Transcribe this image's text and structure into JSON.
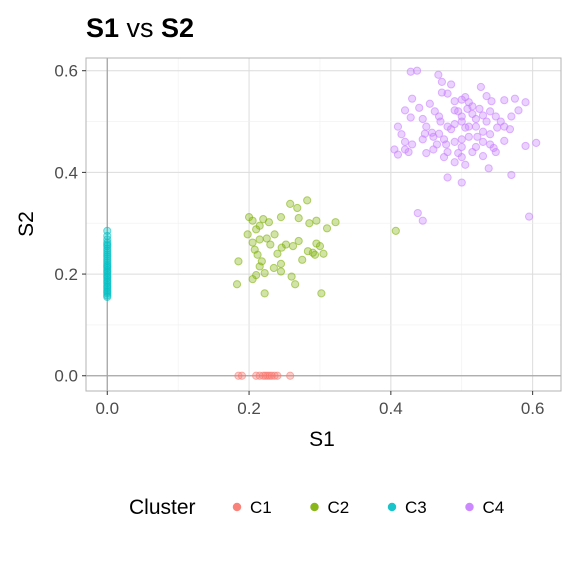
{
  "chart_data": {
    "type": "scatter",
    "title": {
      "bold_1": "S1",
      "middle": " vs ",
      "bold_2": "S2"
    },
    "xlabel": "S1",
    "ylabel": "S2",
    "xlim": [
      -0.03,
      0.64
    ],
    "ylim": [
      -0.03,
      0.625
    ],
    "x_ticks": [
      0.0,
      0.2,
      0.4,
      0.6
    ],
    "y_ticks": [
      0.0,
      0.2,
      0.4,
      0.6
    ],
    "x_tick_labels": [
      "0.0",
      "0.2",
      "0.4",
      "0.6"
    ],
    "y_tick_labels": [
      "0.0",
      "0.2",
      "0.4",
      "0.6"
    ],
    "grid": true,
    "legend": {
      "title": "Cluster",
      "position": "bottom"
    },
    "series": [
      {
        "name": "C1",
        "color": "#F8766D",
        "points": [
          [
            0.185,
            0.0
          ],
          [
            0.19,
            0.0
          ],
          [
            0.21,
            0.0
          ],
          [
            0.215,
            0.0
          ],
          [
            0.22,
            0.0
          ],
          [
            0.223,
            0.0
          ],
          [
            0.226,
            0.0
          ],
          [
            0.229,
            0.0
          ],
          [
            0.232,
            0.0
          ],
          [
            0.236,
            0.0
          ],
          [
            0.24,
            0.0
          ],
          [
            0.258,
            0.0
          ]
        ]
      },
      {
        "name": "C2",
        "color": "#7CAE00",
        "points": [
          [
            0.2,
            0.312
          ],
          [
            0.205,
            0.305
          ],
          [
            0.21,
            0.288
          ],
          [
            0.215,
            0.295
          ],
          [
            0.22,
            0.308
          ],
          [
            0.228,
            0.302
          ],
          [
            0.236,
            0.278
          ],
          [
            0.245,
            0.312
          ],
          [
            0.258,
            0.338
          ],
          [
            0.268,
            0.33
          ],
          [
            0.282,
            0.345
          ],
          [
            0.27,
            0.31
          ],
          [
            0.285,
            0.3
          ],
          [
            0.295,
            0.305
          ],
          [
            0.31,
            0.29
          ],
          [
            0.322,
            0.302
          ],
          [
            0.198,
            0.278
          ],
          [
            0.205,
            0.262
          ],
          [
            0.215,
            0.268
          ],
          [
            0.225,
            0.27
          ],
          [
            0.23,
            0.258
          ],
          [
            0.24,
            0.24
          ],
          [
            0.246,
            0.252
          ],
          [
            0.252,
            0.258
          ],
          [
            0.262,
            0.255
          ],
          [
            0.27,
            0.265
          ],
          [
            0.283,
            0.245
          ],
          [
            0.29,
            0.242
          ],
          [
            0.295,
            0.26
          ],
          [
            0.3,
            0.255
          ],
          [
            0.305,
            0.24
          ],
          [
            0.208,
            0.248
          ],
          [
            0.212,
            0.238
          ],
          [
            0.218,
            0.225
          ],
          [
            0.222,
            0.202
          ],
          [
            0.215,
            0.215
          ],
          [
            0.21,
            0.198
          ],
          [
            0.235,
            0.212
          ],
          [
            0.245,
            0.205
          ],
          [
            0.26,
            0.195
          ],
          [
            0.265,
            0.18
          ],
          [
            0.222,
            0.162
          ],
          [
            0.185,
            0.225
          ],
          [
            0.183,
            0.18
          ],
          [
            0.302,
            0.162
          ],
          [
            0.275,
            0.228
          ],
          [
            0.293,
            0.238
          ],
          [
            0.407,
            0.285
          ],
          [
            0.205,
            0.19
          ],
          [
            0.245,
            0.22
          ]
        ]
      },
      {
        "name": "C3",
        "color": "#00BFC4",
        "points": [
          [
            0.0,
            0.285
          ],
          [
            0.0,
            0.275
          ],
          [
            0.0,
            0.268
          ],
          [
            0.0,
            0.262
          ],
          [
            0.0,
            0.258
          ],
          [
            0.0,
            0.255
          ],
          [
            0.0,
            0.25
          ],
          [
            0.0,
            0.246
          ],
          [
            0.0,
            0.242
          ],
          [
            0.0,
            0.238
          ],
          [
            0.0,
            0.234
          ],
          [
            0.0,
            0.23
          ],
          [
            0.0,
            0.226
          ],
          [
            0.0,
            0.222
          ],
          [
            0.0,
            0.218
          ],
          [
            0.0,
            0.215
          ],
          [
            0.0,
            0.212
          ],
          [
            0.0,
            0.208
          ],
          [
            0.0,
            0.205
          ],
          [
            0.0,
            0.202
          ],
          [
            0.0,
            0.198
          ],
          [
            0.0,
            0.195
          ],
          [
            0.0,
            0.192
          ],
          [
            0.0,
            0.188
          ],
          [
            0.0,
            0.185
          ],
          [
            0.0,
            0.182
          ],
          [
            0.0,
            0.178
          ],
          [
            0.0,
            0.175
          ],
          [
            0.0,
            0.172
          ],
          [
            0.0,
            0.168
          ],
          [
            0.0,
            0.165
          ],
          [
            0.0,
            0.162
          ],
          [
            0.0,
            0.158
          ],
          [
            0.0,
            0.155
          ]
        ]
      },
      {
        "name": "C4",
        "color": "#C77CFF",
        "points": [
          [
            0.428,
            0.598
          ],
          [
            0.437,
            0.6
          ],
          [
            0.467,
            0.592
          ],
          [
            0.472,
            0.578
          ],
          [
            0.485,
            0.573
          ],
          [
            0.527,
            0.568
          ],
          [
            0.472,
            0.557
          ],
          [
            0.48,
            0.555
          ],
          [
            0.49,
            0.54
          ],
          [
            0.5,
            0.543
          ],
          [
            0.505,
            0.548
          ],
          [
            0.51,
            0.538
          ],
          [
            0.535,
            0.55
          ],
          [
            0.542,
            0.54
          ],
          [
            0.56,
            0.542
          ],
          [
            0.575,
            0.545
          ],
          [
            0.59,
            0.538
          ],
          [
            0.43,
            0.545
          ],
          [
            0.44,
            0.527
          ],
          [
            0.455,
            0.535
          ],
          [
            0.462,
            0.52
          ],
          [
            0.42,
            0.522
          ],
          [
            0.49,
            0.522
          ],
          [
            0.495,
            0.52
          ],
          [
            0.5,
            0.51
          ],
          [
            0.508,
            0.525
          ],
          [
            0.515,
            0.515
          ],
          [
            0.52,
            0.505
          ],
          [
            0.53,
            0.512
          ],
          [
            0.54,
            0.52
          ],
          [
            0.548,
            0.51
          ],
          [
            0.555,
            0.5
          ],
          [
            0.57,
            0.51
          ],
          [
            0.58,
            0.522
          ],
          [
            0.468,
            0.51
          ],
          [
            0.47,
            0.5
          ],
          [
            0.48,
            0.49
          ],
          [
            0.485,
            0.485
          ],
          [
            0.49,
            0.495
          ],
          [
            0.5,
            0.5
          ],
          [
            0.505,
            0.488
          ],
          [
            0.52,
            0.49
          ],
          [
            0.53,
            0.48
          ],
          [
            0.54,
            0.475
          ],
          [
            0.55,
            0.488
          ],
          [
            0.56,
            0.49
          ],
          [
            0.568,
            0.485
          ],
          [
            0.445,
            0.505
          ],
          [
            0.45,
            0.49
          ],
          [
            0.428,
            0.508
          ],
          [
            0.41,
            0.49
          ],
          [
            0.415,
            0.475
          ],
          [
            0.42,
            0.46
          ],
          [
            0.43,
            0.455
          ],
          [
            0.445,
            0.465
          ],
          [
            0.46,
            0.47
          ],
          [
            0.475,
            0.465
          ],
          [
            0.478,
            0.455
          ],
          [
            0.49,
            0.46
          ],
          [
            0.5,
            0.465
          ],
          [
            0.51,
            0.47
          ],
          [
            0.52,
            0.45
          ],
          [
            0.53,
            0.46
          ],
          [
            0.54,
            0.455
          ],
          [
            0.545,
            0.448
          ],
          [
            0.56,
            0.462
          ],
          [
            0.48,
            0.44
          ],
          [
            0.495,
            0.438
          ],
          [
            0.5,
            0.43
          ],
          [
            0.515,
            0.44
          ],
          [
            0.53,
            0.432
          ],
          [
            0.548,
            0.44
          ],
          [
            0.405,
            0.445
          ],
          [
            0.41,
            0.435
          ],
          [
            0.42,
            0.445
          ],
          [
            0.425,
            0.44
          ],
          [
            0.45,
            0.438
          ],
          [
            0.46,
            0.445
          ],
          [
            0.465,
            0.455
          ],
          [
            0.475,
            0.43
          ],
          [
            0.49,
            0.42
          ],
          [
            0.505,
            0.415
          ],
          [
            0.5,
            0.38
          ],
          [
            0.48,
            0.39
          ],
          [
            0.538,
            0.408
          ],
          [
            0.57,
            0.395
          ],
          [
            0.59,
            0.452
          ],
          [
            0.605,
            0.458
          ],
          [
            0.438,
            0.32
          ],
          [
            0.445,
            0.305
          ],
          [
            0.595,
            0.313
          ],
          [
            0.458,
            0.478
          ],
          [
            0.468,
            0.476
          ],
          [
            0.448,
            0.476
          ],
          [
            0.51,
            0.49
          ],
          [
            0.522,
            0.47
          ],
          [
            0.535,
            0.5
          ],
          [
            0.5,
            0.45
          ],
          [
            0.525,
            0.525
          ],
          [
            0.515,
            0.53
          ]
        ]
      }
    ]
  }
}
